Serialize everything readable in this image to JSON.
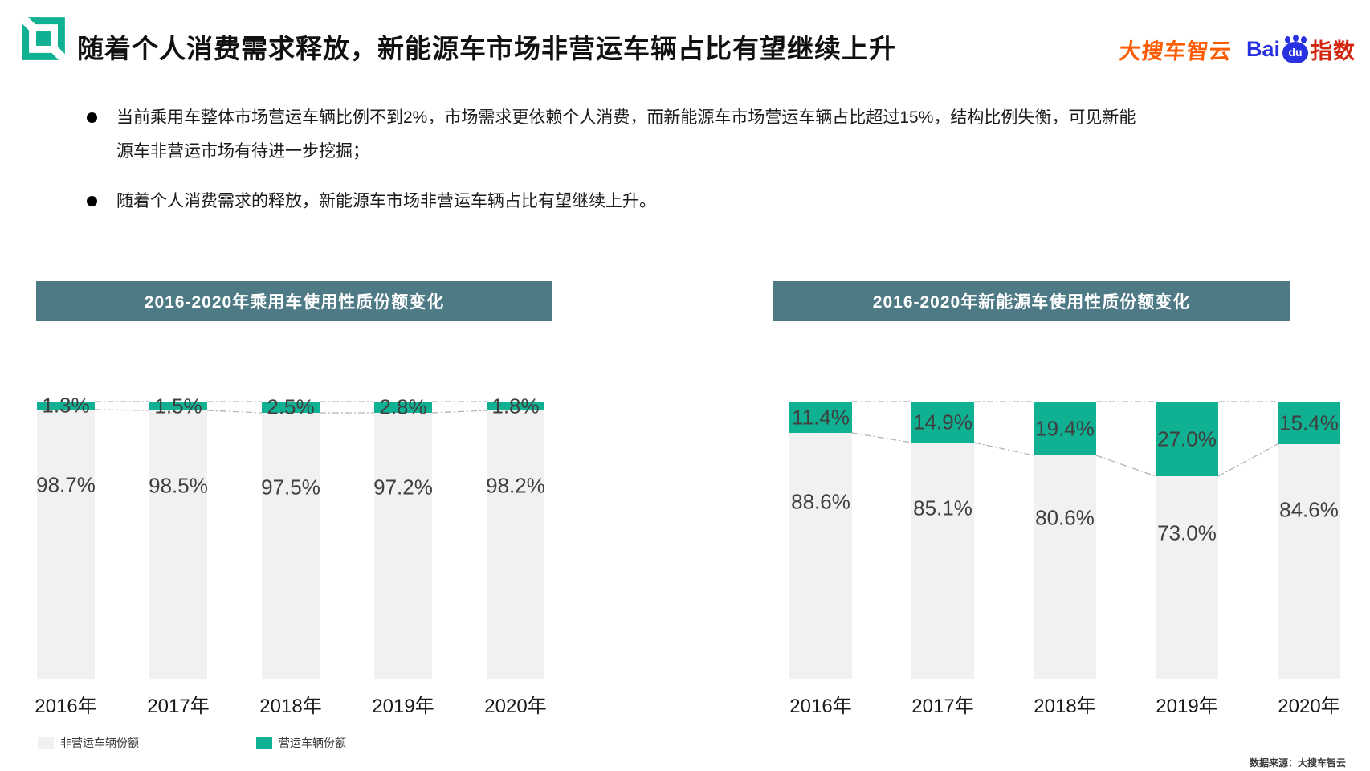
{
  "header": {
    "title": "随着个人消费需求释放，新能源车市场非营运车辆占比有望继续上升",
    "logo_icon": "dasouche-green-square-logo",
    "logo_color": "#10b192",
    "brand_left": "大搜车智云",
    "brand_right": {
      "bai": "Bai",
      "du": "du",
      "suffix": "指数"
    }
  },
  "bullets": [
    "当前乘用车整体市场营运车辆比例不到2%，市场需求更依赖个人消费，而新能源车市场营运车辆占比超过15%，结构比例失衡，可见新能源车非营运市场有待进一步挖掘；",
    "随着个人消费需求的释放，新能源车市场非营运车辆占比有望继续上升。"
  ],
  "legend": [
    {
      "label": "非营运车辆份额",
      "color": "#f1f1f1"
    },
    {
      "label": "营运车辆份额",
      "color": "#10b192"
    }
  ],
  "footer": {
    "source": "数据来源：大搜车智云"
  },
  "colors": {
    "accent_green": "#10b192",
    "title_bar_teal": "#4e7a86",
    "non_operating_gray": "#f1f1f1",
    "connector_gray": "#b3b3b3"
  },
  "chart_data": [
    {
      "type": "bar",
      "stacked": true,
      "title": "2016-2020年乘用车使用性质份额变化",
      "categories": [
        "2016年",
        "2017年",
        "2018年",
        "2019年",
        "2020年"
      ],
      "series": [
        {
          "name": "营运车辆份额",
          "color": "#10b192",
          "values": [
            1.3,
            1.5,
            2.5,
            2.8,
            1.8
          ]
        },
        {
          "name": "非营运车辆份额",
          "color": "#f1f1f1",
          "values": [
            98.7,
            98.5,
            97.5,
            97.2,
            98.2
          ]
        }
      ],
      "unit": "%",
      "ylim": [
        0,
        100
      ],
      "grid": false,
      "legend_position": "bottom-left"
    },
    {
      "type": "bar",
      "stacked": true,
      "title": "2016-2020年新能源车使用性质份额变化",
      "categories": [
        "2016年",
        "2017年",
        "2018年",
        "2019年",
        "2020年"
      ],
      "series": [
        {
          "name": "营运车辆份额",
          "color": "#10b192",
          "values": [
            11.4,
            14.9,
            19.4,
            27.0,
            15.4
          ]
        },
        {
          "name": "非营运车辆份额",
          "color": "#f1f1f1",
          "values": [
            88.6,
            85.1,
            80.6,
            73.0,
            84.6
          ]
        }
      ],
      "unit": "%",
      "ylim": [
        0,
        100
      ],
      "grid": false,
      "legend_position": "none"
    }
  ]
}
